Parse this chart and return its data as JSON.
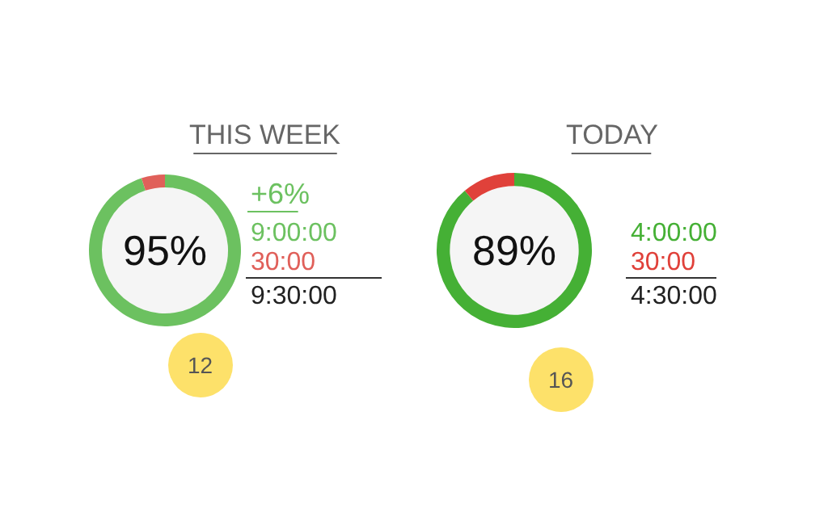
{
  "chart_data": [
    {
      "type": "donut",
      "title": "THIS WEEK",
      "categories": [
        null,
        null
      ],
      "values": [
        95,
        5
      ],
      "colors": [
        "#6cc160",
        "#e0605a"
      ],
      "annotations": [
        "95%",
        "+6%",
        "9:00:00",
        "30:00",
        "9:30:00",
        "12"
      ]
    },
    {
      "type": "donut",
      "title": "TODAY",
      "categories": [
        null,
        null
      ],
      "values": [
        89,
        11
      ],
      "colors": [
        "#45b035",
        "#e0413a"
      ],
      "annotations": [
        "89%",
        "4:00:00",
        "30:00",
        "4:30:00",
        "16"
      ]
    }
  ]
}
